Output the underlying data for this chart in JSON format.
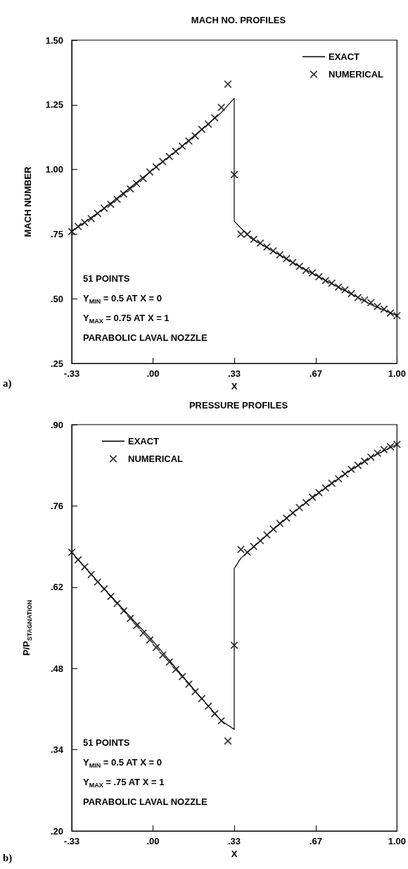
{
  "chart_data": [
    {
      "type": "line",
      "title": "MACH NO. PROFILES",
      "xlabel": "X",
      "ylabel": "MACH NUMBER",
      "annotations": [
        "51 POINTS",
        "Y$_{MIN}$ = 0.5 AT X = 0",
        "Y$_{MAX}$ = 0.75 AT X = 1",
        "PARABOLIC LAVAL NOZZLE",
        "a)"
      ],
      "series": [
        {
          "name": "EXACT",
          "type": "line",
          "color": "#000000",
          "marker": "none",
          "x": [
            -0.333,
            -0.2,
            -0.1,
            0,
            0.1,
            0.2,
            0.28,
            0.333,
            0.333,
            0.4,
            0.5,
            0.6,
            0.7,
            0.8,
            0.9,
            1.0
          ],
          "values": [
            0.76,
            0.85,
            0.925,
            1.0,
            1.075,
            1.155,
            1.22,
            1.275,
            0.8,
            0.735,
            0.68,
            0.625,
            0.575,
            0.525,
            0.475,
            0.435
          ]
        },
        {
          "name": "NUMERICAL",
          "type": "scatter",
          "color": "#000000",
          "marker": "cross",
          "x": [
            -0.333,
            -0.307,
            -0.28,
            -0.253,
            -0.227,
            -0.2,
            -0.173,
            -0.147,
            -0.12,
            -0.093,
            -0.067,
            -0.04,
            -0.013,
            0.013,
            0.04,
            0.067,
            0.093,
            0.12,
            0.147,
            0.173,
            0.2,
            0.227,
            0.253,
            0.28,
            0.307,
            0.333,
            0.36,
            0.387,
            0.413,
            0.44,
            0.467,
            0.493,
            0.52,
            0.547,
            0.573,
            0.6,
            0.627,
            0.653,
            0.68,
            0.707,
            0.733,
            0.76,
            0.787,
            0.813,
            0.84,
            0.867,
            0.893,
            0.92,
            0.947,
            0.973,
            1.0
          ],
          "values": [
            0.76,
            0.78,
            0.795,
            0.81,
            0.83,
            0.85,
            0.865,
            0.885,
            0.905,
            0.925,
            0.945,
            0.965,
            0.99,
            1.01,
            1.03,
            1.05,
            1.07,
            1.09,
            1.11,
            1.13,
            1.155,
            1.175,
            1.2,
            1.24,
            1.33,
            0.98,
            0.75,
            0.75,
            0.73,
            0.715,
            0.7,
            0.685,
            0.67,
            0.655,
            0.64,
            0.625,
            0.61,
            0.6,
            0.585,
            0.57,
            0.56,
            0.545,
            0.535,
            0.52,
            0.505,
            0.495,
            0.485,
            0.47,
            0.46,
            0.445,
            0.435
          ]
        }
      ],
      "xlim": [
        -0.333,
        1.0
      ],
      "xticks": [
        {
          "value": -0.333,
          "label": "-.33"
        },
        {
          "value": 0,
          "label": ".00"
        },
        {
          "value": 0.333,
          "label": ".33"
        },
        {
          "value": 0.667,
          "label": ".67"
        },
        {
          "value": 1.0,
          "label": "1.00"
        }
      ],
      "ylim": [
        0.25,
        1.5
      ],
      "yticks": [
        {
          "value": 0.25,
          "label": ".25"
        },
        {
          "value": 0.5,
          "label": ".50"
        },
        {
          "value": 0.75,
          "label": ".75"
        },
        {
          "value": 1.0,
          "label": "1.00"
        },
        {
          "value": 1.25,
          "label": "1.25"
        },
        {
          "value": 1.5,
          "label": "1.50"
        }
      ],
      "grid": false,
      "legend": "top right"
    },
    {
      "type": "line",
      "title": "PRESSURE PROFILES",
      "xlabel": "X",
      "ylabel": "P/P$_{STAGNATION}$",
      "annotations": [
        "51 POINTS",
        "Y$_{MIN}$ = 0.5 AT X = 0",
        "Y$_{MAX}$ = .75 AT X = 1",
        "PARABOLIC LAVAL NOZZLE",
        "b)"
      ],
      "series": [
        {
          "name": "EXACT",
          "type": "line",
          "color": "#000000",
          "marker": "none",
          "x": [
            -0.333,
            -0.2,
            0,
            0.2,
            0.28,
            0.333,
            0.333,
            0.36,
            0.5,
            0.6,
            0.7,
            0.8,
            0.9,
            1.0
          ],
          "values": [
            0.68,
            0.617,
            0.527,
            0.428,
            0.39,
            0.375,
            0.652,
            0.67,
            0.722,
            0.757,
            0.789,
            0.819,
            0.845,
            0.866
          ]
        },
        {
          "name": "NUMERICAL",
          "type": "scatter",
          "color": "#000000",
          "marker": "cross",
          "x": [
            -0.333,
            -0.307,
            -0.28,
            -0.253,
            -0.227,
            -0.2,
            -0.173,
            -0.147,
            -0.12,
            -0.093,
            -0.067,
            -0.04,
            -0.013,
            0.013,
            0.04,
            0.067,
            0.093,
            0.12,
            0.147,
            0.173,
            0.2,
            0.227,
            0.253,
            0.28,
            0.307,
            0.333,
            0.36,
            0.387,
            0.413,
            0.44,
            0.467,
            0.493,
            0.52,
            0.547,
            0.573,
            0.6,
            0.627,
            0.653,
            0.68,
            0.707,
            0.733,
            0.76,
            0.787,
            0.813,
            0.84,
            0.867,
            0.893,
            0.92,
            0.947,
            0.973,
            1.0
          ],
          "values": [
            0.68,
            0.667,
            0.655,
            0.642,
            0.629,
            0.617,
            0.604,
            0.592,
            0.579,
            0.566,
            0.554,
            0.541,
            0.529,
            0.516,
            0.503,
            0.491,
            0.478,
            0.466,
            0.453,
            0.44,
            0.428,
            0.415,
            0.402,
            0.39,
            0.355,
            0.52,
            0.685,
            0.68,
            0.69,
            0.7,
            0.71,
            0.72,
            0.73,
            0.739,
            0.748,
            0.757,
            0.766,
            0.775,
            0.783,
            0.791,
            0.799,
            0.807,
            0.815,
            0.823,
            0.83,
            0.837,
            0.844,
            0.851,
            0.857,
            0.862,
            0.866
          ]
        }
      ],
      "xlim": [
        -0.333,
        1.0
      ],
      "xticks": [
        {
          "value": -0.333,
          "label": "-.33"
        },
        {
          "value": 0,
          "label": ".00"
        },
        {
          "value": 0.333,
          "label": ".33"
        },
        {
          "value": 0.667,
          "label": ".67"
        },
        {
          "value": 1.0,
          "label": "1.00"
        }
      ],
      "ylim": [
        0.2,
        0.9
      ],
      "yticks": [
        {
          "value": 0.2,
          "label": ".20"
        },
        {
          "value": 0.34,
          "label": ".34"
        },
        {
          "value": 0.48,
          "label": ".48"
        },
        {
          "value": 0.62,
          "label": ".62"
        },
        {
          "value": 0.76,
          "label": ".76"
        },
        {
          "value": 0.9,
          "label": ".90"
        }
      ],
      "grid": false,
      "legend": "top left"
    }
  ]
}
